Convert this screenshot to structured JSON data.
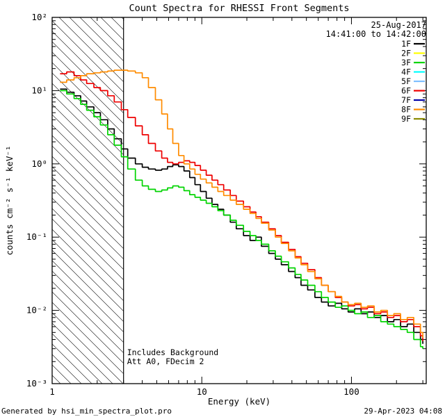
{
  "header": {
    "date": "25-Aug-2017",
    "time_range": "14:41:00 to 14:42:00"
  },
  "footer": {
    "generated_by": "Generated by hsi_min_spectra_plot.pro",
    "generated_at": "29-Apr-2023 04:08"
  },
  "chart_data": {
    "type": "line",
    "title": "Count Spectra for RHESSI Front Segments",
    "xlabel": "Energy (keV)",
    "ylabel": "counts cm⁻² s⁻¹ keV⁻¹",
    "xscale": "log",
    "yscale": "log",
    "xlim": [
      1,
      316
    ],
    "ylim": [
      0.001,
      100
    ],
    "x_ticks": [
      {
        "v": 1,
        "label": "1"
      },
      {
        "v": 10,
        "label": "10"
      },
      {
        "v": 100,
        "label": "100"
      }
    ],
    "y_ticks": [
      {
        "v": 0.001,
        "label": "10⁻³"
      },
      {
        "v": 0.01,
        "label": "10⁻²"
      },
      {
        "v": 0.1,
        "label": "10⁻¹"
      },
      {
        "v": 1,
        "label": "10⁰"
      },
      {
        "v": 10,
        "label": "10¹"
      },
      {
        "v": 100,
        "label": "10²"
      }
    ],
    "hatch_region": {
      "from": 1,
      "to": 3
    },
    "annotations": [
      "Includes Background",
      "Att A0, FDecim 2"
    ],
    "legend_position": "top-right",
    "series": [
      {
        "name": "1F",
        "color": "#000000",
        "points": [
          [
            1.13,
            10.5
          ],
          [
            1.25,
            9.5
          ],
          [
            1.4,
            8.5
          ],
          [
            1.55,
            7.2
          ],
          [
            1.7,
            6.0
          ],
          [
            1.9,
            5.0
          ],
          [
            2.1,
            4.0
          ],
          [
            2.35,
            3.0
          ],
          [
            2.6,
            2.2
          ],
          [
            2.9,
            1.6
          ],
          [
            3.2,
            1.2
          ],
          [
            3.6,
            1.0
          ],
          [
            4.0,
            0.9
          ],
          [
            4.4,
            0.85
          ],
          [
            4.9,
            0.82
          ],
          [
            5.4,
            0.85
          ],
          [
            5.9,
            0.92
          ],
          [
            6.4,
            0.97
          ],
          [
            7.0,
            0.92
          ],
          [
            7.6,
            0.8
          ],
          [
            8.3,
            0.65
          ],
          [
            9.0,
            0.52
          ],
          [
            9.8,
            0.42
          ],
          [
            10.7,
            0.34
          ],
          [
            11.7,
            0.28
          ],
          [
            12.8,
            0.24
          ],
          [
            14,
            0.2
          ],
          [
            15.5,
            0.16
          ],
          [
            17,
            0.13
          ],
          [
            19,
            0.105
          ],
          [
            21,
            0.09
          ],
          [
            23,
            0.1
          ],
          [
            25,
            0.075
          ],
          [
            28,
            0.06
          ],
          [
            31,
            0.05
          ],
          [
            34,
            0.042
          ],
          [
            38,
            0.034
          ],
          [
            42,
            0.028
          ],
          [
            46,
            0.022
          ],
          [
            51,
            0.019
          ],
          [
            57,
            0.015
          ],
          [
            63,
            0.013
          ],
          [
            70,
            0.0115
          ],
          [
            78,
            0.0125
          ],
          [
            86,
            0.0105
          ],
          [
            95,
            0.0095
          ],
          [
            105,
            0.0105
          ],
          [
            116,
            0.009
          ],
          [
            128,
            0.0095
          ],
          [
            142,
            0.008
          ],
          [
            157,
            0.0085
          ],
          [
            174,
            0.007
          ],
          [
            192,
            0.0075
          ],
          [
            213,
            0.006
          ],
          [
            236,
            0.0065
          ],
          [
            261,
            0.005
          ],
          [
            289,
            0.004
          ],
          [
            300,
            0.0035
          ]
        ]
      },
      {
        "name": "2F",
        "color": "#ffff00",
        "points": []
      },
      {
        "name": "3F",
        "color": "#00d400",
        "points": [
          [
            1.13,
            10.0
          ],
          [
            1.25,
            9.0
          ],
          [
            1.4,
            7.8
          ],
          [
            1.55,
            6.5
          ],
          [
            1.7,
            5.4
          ],
          [
            1.9,
            4.4
          ],
          [
            2.1,
            3.4
          ],
          [
            2.35,
            2.5
          ],
          [
            2.6,
            1.8
          ],
          [
            2.9,
            1.25
          ],
          [
            3.2,
            0.85
          ],
          [
            3.6,
            0.6
          ],
          [
            4.0,
            0.5
          ],
          [
            4.4,
            0.45
          ],
          [
            4.9,
            0.42
          ],
          [
            5.4,
            0.44
          ],
          [
            5.9,
            0.47
          ],
          [
            6.4,
            0.5
          ],
          [
            7.0,
            0.48
          ],
          [
            7.6,
            0.43
          ],
          [
            8.3,
            0.38
          ],
          [
            9.0,
            0.35
          ],
          [
            9.8,
            0.32
          ],
          [
            10.7,
            0.29
          ],
          [
            11.7,
            0.26
          ],
          [
            12.8,
            0.23
          ],
          [
            14,
            0.2
          ],
          [
            15.5,
            0.17
          ],
          [
            17,
            0.145
          ],
          [
            19,
            0.12
          ],
          [
            21,
            0.105
          ],
          [
            23,
            0.09
          ],
          [
            25,
            0.08
          ],
          [
            28,
            0.065
          ],
          [
            31,
            0.055
          ],
          [
            34,
            0.046
          ],
          [
            38,
            0.038
          ],
          [
            42,
            0.031
          ],
          [
            46,
            0.026
          ],
          [
            51,
            0.022
          ],
          [
            57,
            0.018
          ],
          [
            63,
            0.015
          ],
          [
            70,
            0.013
          ],
          [
            78,
            0.011
          ],
          [
            86,
            0.0115
          ],
          [
            95,
            0.01
          ],
          [
            105,
            0.009
          ],
          [
            116,
            0.0095
          ],
          [
            128,
            0.008
          ],
          [
            142,
            0.0085
          ],
          [
            157,
            0.007
          ],
          [
            174,
            0.0065
          ],
          [
            192,
            0.006
          ],
          [
            213,
            0.0055
          ],
          [
            236,
            0.005
          ],
          [
            261,
            0.004
          ],
          [
            289,
            0.0032
          ],
          [
            300,
            0.003
          ]
        ]
      },
      {
        "name": "4F",
        "color": "#00ffff",
        "points": []
      },
      {
        "name": "5F",
        "color": "#7fbfff",
        "points": []
      },
      {
        "name": "6F",
        "color": "#ee0000",
        "points": [
          [
            1.13,
            17
          ],
          [
            1.25,
            18
          ],
          [
            1.4,
            16
          ],
          [
            1.55,
            14
          ],
          [
            1.7,
            12.5
          ],
          [
            1.9,
            11
          ],
          [
            2.1,
            10
          ],
          [
            2.35,
            8.5
          ],
          [
            2.6,
            7
          ],
          [
            2.9,
            5.5
          ],
          [
            3.2,
            4.3
          ],
          [
            3.6,
            3.3
          ],
          [
            4.0,
            2.5
          ],
          [
            4.4,
            1.9
          ],
          [
            4.9,
            1.5
          ],
          [
            5.4,
            1.2
          ],
          [
            5.9,
            1.05
          ],
          [
            6.4,
            1.0
          ],
          [
            7.0,
            1.05
          ],
          [
            7.6,
            1.1
          ],
          [
            8.3,
            1.05
          ],
          [
            9.0,
            0.95
          ],
          [
            9.8,
            0.82
          ],
          [
            10.7,
            0.7
          ],
          [
            11.7,
            0.6
          ],
          [
            12.8,
            0.52
          ],
          [
            14,
            0.44
          ],
          [
            15.5,
            0.37
          ],
          [
            17,
            0.31
          ],
          [
            19,
            0.26
          ],
          [
            21,
            0.22
          ],
          [
            23,
            0.19
          ],
          [
            25,
            0.16
          ],
          [
            28,
            0.13
          ],
          [
            31,
            0.105
          ],
          [
            34,
            0.085
          ],
          [
            38,
            0.068
          ],
          [
            42,
            0.054
          ],
          [
            46,
            0.044
          ],
          [
            51,
            0.036
          ],
          [
            57,
            0.028
          ],
          [
            63,
            0.022
          ],
          [
            70,
            0.018
          ],
          [
            78,
            0.015
          ],
          [
            86,
            0.013
          ],
          [
            95,
            0.0115
          ],
          [
            105,
            0.012
          ],
          [
            116,
            0.0105
          ],
          [
            128,
            0.011
          ],
          [
            142,
            0.009
          ],
          [
            157,
            0.0095
          ],
          [
            174,
            0.008
          ],
          [
            192,
            0.0085
          ],
          [
            213,
            0.007
          ],
          [
            236,
            0.0075
          ],
          [
            261,
            0.006
          ],
          [
            289,
            0.0045
          ],
          [
            300,
            0.0038
          ]
        ]
      },
      {
        "name": "7F",
        "color": "#0000a8",
        "points": []
      },
      {
        "name": "8F",
        "color": "#ff8c00",
        "points": [
          [
            1.13,
            13
          ],
          [
            1.25,
            14
          ],
          [
            1.4,
            15
          ],
          [
            1.55,
            16
          ],
          [
            1.7,
            17
          ],
          [
            1.9,
            17.5
          ],
          [
            2.1,
            18
          ],
          [
            2.35,
            18.5
          ],
          [
            2.6,
            19
          ],
          [
            2.9,
            19
          ],
          [
            3.2,
            18.5
          ],
          [
            3.6,
            17.5
          ],
          [
            4.0,
            15
          ],
          [
            4.4,
            11
          ],
          [
            4.9,
            7.5
          ],
          [
            5.4,
            4.8
          ],
          [
            5.9,
            3.0
          ],
          [
            6.4,
            1.9
          ],
          [
            7.0,
            1.3
          ],
          [
            7.6,
            1.0
          ],
          [
            8.3,
            0.85
          ],
          [
            9.0,
            0.72
          ],
          [
            9.8,
            0.62
          ],
          [
            10.7,
            0.55
          ],
          [
            11.7,
            0.48
          ],
          [
            12.8,
            0.42
          ],
          [
            14,
            0.37
          ],
          [
            15.5,
            0.32
          ],
          [
            17,
            0.28
          ],
          [
            19,
            0.24
          ],
          [
            21,
            0.21
          ],
          [
            23,
            0.18
          ],
          [
            25,
            0.155
          ],
          [
            28,
            0.125
          ],
          [
            31,
            0.1
          ],
          [
            34,
            0.082
          ],
          [
            38,
            0.065
          ],
          [
            42,
            0.052
          ],
          [
            46,
            0.042
          ],
          [
            51,
            0.034
          ],
          [
            57,
            0.027
          ],
          [
            63,
            0.022
          ],
          [
            70,
            0.018
          ],
          [
            78,
            0.0155
          ],
          [
            86,
            0.013
          ],
          [
            95,
            0.012
          ],
          [
            105,
            0.0125
          ],
          [
            116,
            0.011
          ],
          [
            128,
            0.0115
          ],
          [
            142,
            0.0095
          ],
          [
            157,
            0.01
          ],
          [
            174,
            0.0085
          ],
          [
            192,
            0.009
          ],
          [
            213,
            0.0075
          ],
          [
            236,
            0.008
          ],
          [
            261,
            0.0065
          ],
          [
            289,
            0.005
          ],
          [
            300,
            0.0042
          ]
        ]
      },
      {
        "name": "9F",
        "color": "#8b8b00",
        "points": []
      }
    ]
  }
}
